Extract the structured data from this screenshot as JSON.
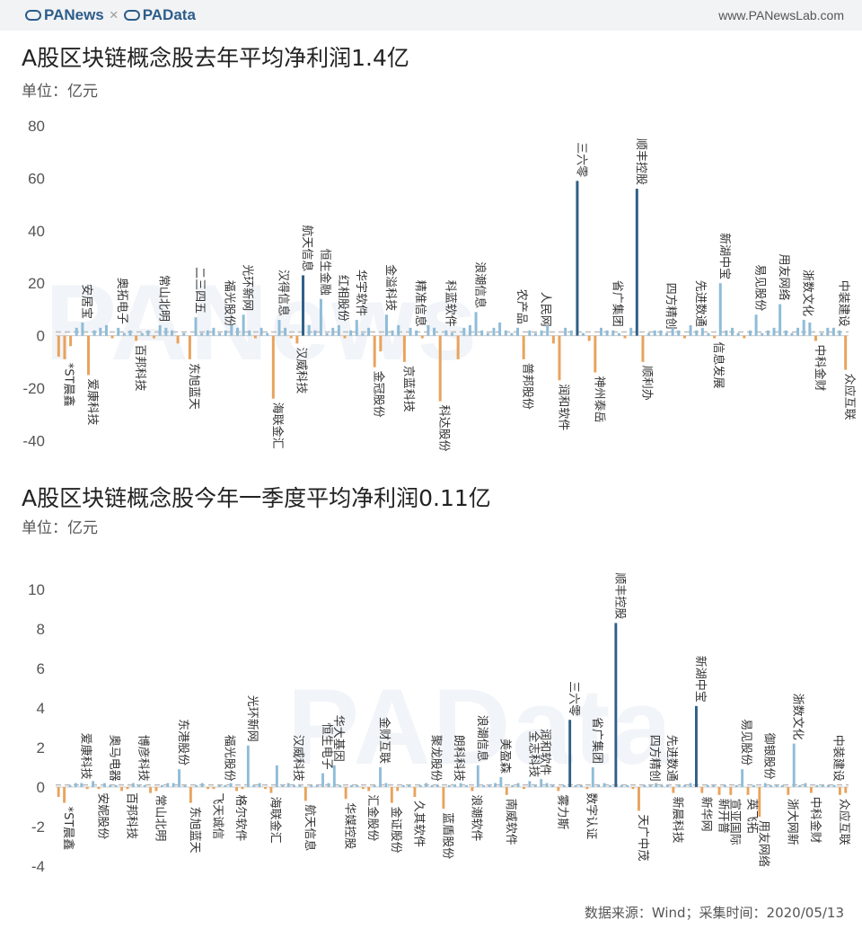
{
  "header": {
    "brand_a": "PANews",
    "brand_sep": "×",
    "brand_b": "PAData",
    "site": "www.PANewsLab.com"
  },
  "watermark_1": "PANews",
  "watermark_2": "PAData",
  "source": "数据来源：Wind；采集时间：2020/05/13",
  "colors": {
    "positive": "#8fbcd8",
    "negative": "#e8a35d",
    "highlight": "#2f5f86",
    "avg_line": "#bbbbbb"
  },
  "chart_data": [
    {
      "type": "bar",
      "title": "A股区块链概念股去年平均净利润1.4亿",
      "ylabel": "单位：亿元",
      "ylim": [
        -45,
        80
      ],
      "yticks": [
        -40,
        -20,
        0,
        20,
        40,
        60,
        80
      ],
      "average": 1.4,
      "grid": false,
      "labeled_bars": [
        {
          "index": 1,
          "name": "*ST晨鑫",
          "value": -9
        },
        {
          "index": 4,
          "name": "安居宝",
          "value": 5
        },
        {
          "index": 5,
          "name": "爱康科技",
          "value": -15
        },
        {
          "index": 10,
          "name": "奥拓电子",
          "value": 3
        },
        {
          "index": 13,
          "name": "百邦科技",
          "value": -2
        },
        {
          "index": 17,
          "name": "常山北明",
          "value": 4
        },
        {
          "index": 22,
          "name": "东旭蓝天",
          "value": -9
        },
        {
          "index": 23,
          "name": "二三四五",
          "value": 7
        },
        {
          "index": 28,
          "name": "福光股份",
          "value": 2
        },
        {
          "index": 31,
          "name": "光环新网",
          "value": 8
        },
        {
          "index": 36,
          "name": "海联金汇",
          "value": -24
        },
        {
          "index": 37,
          "name": "汉得信息",
          "value": 6
        },
        {
          "index": 40,
          "name": "汉威科技",
          "value": -3
        },
        {
          "index": 41,
          "name": "航天信息",
          "value": 23
        },
        {
          "index": 44,
          "name": "恒生金融",
          "value": 14
        },
        {
          "index": 47,
          "name": "红相股份",
          "value": 4
        },
        {
          "index": 50,
          "name": "华宇软件",
          "value": 6
        },
        {
          "index": 53,
          "name": "金冠股份",
          "value": -12
        },
        {
          "index": 55,
          "name": "金溢科技",
          "value": 8
        },
        {
          "index": 58,
          "name": "京蓝科技",
          "value": -10
        },
        {
          "index": 60,
          "name": "精准信息",
          "value": 2
        },
        {
          "index": 64,
          "name": "科达股份",
          "value": -25
        },
        {
          "index": 65,
          "name": "科蓝软件",
          "value": 2
        },
        {
          "index": 70,
          "name": "浪潮信息",
          "value": 9
        },
        {
          "index": 77,
          "name": "农产品",
          "value": 3
        },
        {
          "index": 78,
          "name": "普邦股份",
          "value": -9
        },
        {
          "index": 81,
          "name": "人民网",
          "value": 2
        },
        {
          "index": 84,
          "name": "润和软件",
          "value": -17
        },
        {
          "index": 87,
          "name": "三六零",
          "value": 59
        },
        {
          "index": 90,
          "name": "神州泰岳",
          "value": -14
        },
        {
          "index": 93,
          "name": "省广集团",
          "value": 2
        },
        {
          "index": 97,
          "name": "顺丰控股",
          "value": 56
        },
        {
          "index": 98,
          "name": "顺利办",
          "value": -10
        },
        {
          "index": 102,
          "name": "四方精创",
          "value": 1
        },
        {
          "index": 107,
          "name": "先进数通",
          "value": 2
        },
        {
          "index": 110,
          "name": "信息发展",
          "value": -1
        },
        {
          "index": 111,
          "name": "新湖中宝",
          "value": 20
        },
        {
          "index": 117,
          "name": "易见股份",
          "value": 8
        },
        {
          "index": 121,
          "name": "用友网络",
          "value": 12
        },
        {
          "index": 125,
          "name": "浙数文化",
          "value": 6
        },
        {
          "index": 127,
          "name": "中科金财",
          "value": -2
        },
        {
          "index": 131,
          "name": "中装建设",
          "value": 2
        },
        {
          "index": 132,
          "name": "众应互联",
          "value": -13
        }
      ],
      "values": [
        -8,
        -9,
        -4,
        3,
        5,
        -15,
        2,
        3,
        4,
        -1,
        3,
        1,
        2,
        -2,
        1,
        2,
        -1,
        4,
        3,
        2,
        -3,
        1,
        -9,
        7,
        1,
        2,
        3,
        1,
        2,
        4,
        3,
        8,
        2,
        -1,
        3,
        1,
        -24,
        6,
        3,
        -1,
        -3,
        23,
        4,
        2,
        14,
        1,
        3,
        4,
        -1,
        2,
        6,
        1,
        3,
        -12,
        -6,
        8,
        2,
        4,
        -10,
        3,
        2,
        -1,
        4,
        3,
        -25,
        2,
        1,
        -9,
        3,
        4,
        9,
        2,
        1,
        3,
        5,
        2,
        1,
        3,
        -9,
        2,
        1,
        2,
        4,
        -3,
        -17,
        3,
        2,
        59,
        1,
        -2,
        -14,
        3,
        2,
        2,
        1,
        -1,
        3,
        56,
        -10,
        1,
        2,
        2,
        1,
        3,
        2,
        -1,
        4,
        2,
        3,
        1,
        -1,
        20,
        2,
        3,
        1,
        -1,
        2,
        8,
        1,
        2,
        3,
        12,
        2,
        1,
        3,
        6,
        5,
        -2,
        1,
        3,
        3,
        2,
        -13
      ]
    },
    {
      "type": "bar",
      "title": "A股区块链概念股今年一季度平均净利润0.11亿",
      "ylabel": "单位：亿元",
      "ylim": [
        -5,
        11
      ],
      "yticks": [
        -4,
        -2,
        0,
        2,
        4,
        6,
        8,
        10
      ],
      "average": 0.11,
      "grid": false,
      "labeled_bars": [
        {
          "index": 1,
          "name": "*ST晨鑫",
          "value": -0.8
        },
        {
          "index": 4,
          "name": "爱康科技",
          "value": 0.2
        },
        {
          "index": 7,
          "name": "安妮股份",
          "value": -0.1
        },
        {
          "index": 9,
          "name": "奥马电器",
          "value": 0.1
        },
        {
          "index": 12,
          "name": "百邦科技",
          "value": -0.1
        },
        {
          "index": 14,
          "name": "博彦科技",
          "value": 0.1
        },
        {
          "index": 17,
          "name": "常山北明",
          "value": -0.2
        },
        {
          "index": 21,
          "name": "东港股份",
          "value": 0.9
        },
        {
          "index": 23,
          "name": "东旭蓝天",
          "value": -0.8
        },
        {
          "index": 27,
          "name": "飞天诚信",
          "value": -0.1
        },
        {
          "index": 29,
          "name": "福光股份",
          "value": 0.1
        },
        {
          "index": 31,
          "name": "格尔软件",
          "value": -0.2
        },
        {
          "index": 33,
          "name": "光环新网",
          "value": 2.1
        },
        {
          "index": 37,
          "name": "海联金汇",
          "value": -0.3
        },
        {
          "index": 41,
          "name": "汉威科技",
          "value": 0.1
        },
        {
          "index": 43,
          "name": "航天信息",
          "value": -0.7
        },
        {
          "index": 46,
          "name": "恒生电子",
          "value": 0.7
        },
        {
          "index": 48,
          "name": "华大基因",
          "value": 1.1
        },
        {
          "index": 50,
          "name": "华媒控股",
          "value": -0.6
        },
        {
          "index": 54,
          "name": "汇金股份",
          "value": -0.2
        },
        {
          "index": 56,
          "name": "金财互联",
          "value": 1.0
        },
        {
          "index": 58,
          "name": "金证股份",
          "value": -0.8
        },
        {
          "index": 62,
          "name": "久其软件",
          "value": -0.5
        },
        {
          "index": 65,
          "name": "聚龙股份",
          "value": 0.1
        },
        {
          "index": 67,
          "name": "蓝盾股份",
          "value": -1.1
        },
        {
          "index": 69,
          "name": "朗科科技",
          "value": 0.1
        },
        {
          "index": 72,
          "name": "浪潮软件",
          "value": -0.2
        },
        {
          "index": 73,
          "name": "浪潮信息",
          "value": 1.1
        },
        {
          "index": 77,
          "name": "美盈森",
          "value": 0.5
        },
        {
          "index": 78,
          "name": "南威软件",
          "value": -0.4
        },
        {
          "index": 82,
          "name": "全志科技",
          "value": 0.3
        },
        {
          "index": 84,
          "name": "润和软件",
          "value": 0.4
        },
        {
          "index": 87,
          "name": "雾力斯",
          "value": -0.2
        },
        {
          "index": 89,
          "name": "三六零",
          "value": 3.4
        },
        {
          "index": 92,
          "name": "数字认证",
          "value": -0.1
        },
        {
          "index": 93,
          "name": "省广集团",
          "value": 1.0
        },
        {
          "index": 97,
          "name": "顺丰控股",
          "value": 8.3
        },
        {
          "index": 101,
          "name": "天广中茂",
          "value": -1.2
        },
        {
          "index": 103,
          "name": "四方精创",
          "value": 0.1
        },
        {
          "index": 106,
          "name": "先进数通",
          "value": 0.1
        },
        {
          "index": 107,
          "name": "新晨科技",
          "value": -0.3
        },
        {
          "index": 111,
          "name": "新湖中宝",
          "value": 4.1
        },
        {
          "index": 112,
          "name": "新华网",
          "value": -0.3
        },
        {
          "index": 115,
          "name": "新开普",
          "value": -0.4
        },
        {
          "index": 117,
          "name": "宣亚国际",
          "value": -0.4
        },
        {
          "index": 119,
          "name": "易见股份",
          "value": 0.9
        },
        {
          "index": 120,
          "name": "英飞拓",
          "value": -0.4
        },
        {
          "index": 122,
          "name": "用友网络",
          "value": -1.5
        },
        {
          "index": 123,
          "name": "御银股份",
          "value": 0.2
        },
        {
          "index": 127,
          "name": "浙大网新",
          "value": -0.4
        },
        {
          "index": 128,
          "name": "浙数文化",
          "value": 2.2
        },
        {
          "index": 131,
          "name": "中科金财",
          "value": -0.3
        },
        {
          "index": 135,
          "name": "中装建设",
          "value": 0.1
        },
        {
          "index": 136,
          "name": "众应互联",
          "value": -0.4
        }
      ],
      "values": [
        -0.5,
        -0.8,
        0.1,
        0.2,
        0.2,
        -0.1,
        0.3,
        -0.1,
        0.2,
        0.1,
        0.1,
        -0.2,
        -0.1,
        0.2,
        0.1,
        0.1,
        -0.3,
        -0.2,
        0.1,
        0.2,
        0.2,
        0.9,
        0.1,
        -0.8,
        0.1,
        0.2,
        -0.1,
        -0.1,
        0.1,
        0.1,
        0.2,
        -0.2,
        -0.1,
        2.1,
        0.1,
        0.2,
        -0.1,
        -0.3,
        1.1,
        0.1,
        0.2,
        0.1,
        0.1,
        -0.7,
        0.1,
        0.1,
        0.7,
        0.2,
        1.1,
        0.1,
        -0.6,
        0.1,
        0.1,
        -0.1,
        -0.2,
        0.1,
        1.0,
        0.2,
        -0.8,
        -0.2,
        0.1,
        0.1,
        -0.5,
        0.1,
        0.2,
        0.1,
        0.1,
        -1.1,
        0.1,
        0.1,
        0.2,
        0.1,
        -0.2,
        1.1,
        0.1,
        0.1,
        0.2,
        0.5,
        -0.4,
        0.1,
        0.2,
        -0.1,
        0.3,
        0.1,
        0.4,
        0.2,
        0.1,
        -0.2,
        0.1,
        3.4,
        0.1,
        0.1,
        -0.1,
        1.0,
        0.1,
        0.2,
        0.1,
        8.3,
        0.1,
        0.1,
        -0.1,
        -1.2,
        0.1,
        0.1,
        0.2,
        0.1,
        0.1,
        -0.3,
        0.1,
        0.1,
        0.2,
        4.1,
        -0.3,
        0.1,
        0.1,
        -0.4,
        0.1,
        -0.4,
        0.1,
        0.9,
        -0.4,
        0.1,
        -1.5,
        0.2,
        0.1,
        0.1,
        0.1,
        -0.4,
        2.2,
        0.1,
        0.2,
        -0.3,
        0.1,
        0.1,
        0.1,
        0.1,
        -0.4,
        -0.3
      ]
    }
  ]
}
